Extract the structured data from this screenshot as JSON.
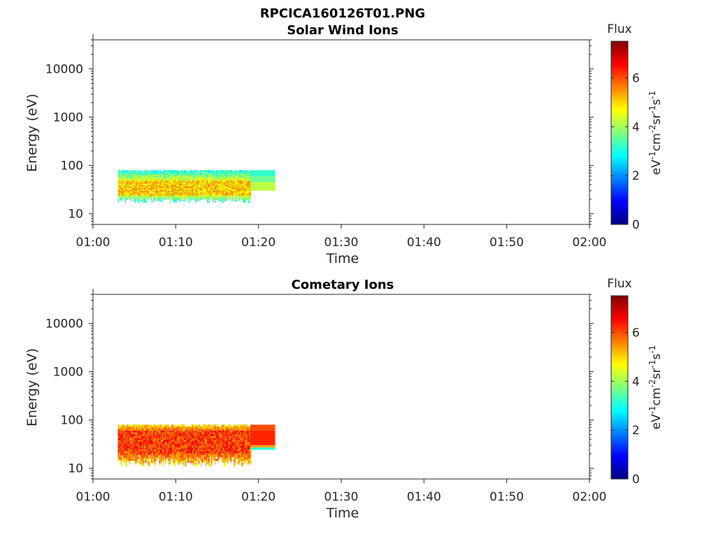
{
  "figure_title": "RPCICA160126T01.PNG",
  "colormap": [
    "#00007f",
    "#0000ff",
    "#007fff",
    "#00ffff",
    "#7fff7f",
    "#ffff00",
    "#ff7f00",
    "#ff0000",
    "#7f0000"
  ],
  "chart_data": [
    {
      "type": "heatmap",
      "title": "Solar Wind Ions",
      "xlabel": "Time",
      "ylabel": "Energy (eV)",
      "xlim": [
        "01:00",
        "02:00"
      ],
      "x_ticks": [
        "01:00",
        "01:10",
        "01:20",
        "01:30",
        "01:40",
        "01:50",
        "02:00"
      ],
      "ylim": [
        6,
        40000
      ],
      "yscale": "log",
      "y_ticks": [
        10,
        100,
        1000,
        10000
      ],
      "y_tick_labels": [
        "10",
        "100",
        "1000",
        "10000"
      ],
      "colorbar": {
        "title": "Flux",
        "label": "eV-1cm-2sr-1s-1",
        "label_base": "eV",
        "label_sup1": "-1",
        "label_mid1": "cm",
        "label_sup2": "-2",
        "label_mid2": "sr",
        "label_sup3": "-1",
        "label_mid3": "s",
        "label_sup4": "-1",
        "range": [
          0,
          7.5
        ],
        "ticks": [
          0,
          2,
          4,
          6
        ],
        "tick_labels": [
          "0",
          "2",
          "4",
          "6"
        ]
      },
      "data_regions": [
        {
          "t_start": "01:03",
          "t_end": "01:19",
          "e_min": 17,
          "e_max": 80,
          "e_core": [
            25,
            50
          ],
          "core_level": 5.8,
          "edge_level": 3.5
        },
        {
          "t_start": "01:19",
          "t_end": "01:22",
          "bands": [
            {
              "e_min": 60,
              "e_max": 80,
              "level": 3.2
            },
            {
              "e_min": 45,
              "e_max": 60,
              "level": 3.6
            },
            {
              "e_min": 30,
              "e_max": 45,
              "level": 4.2
            }
          ]
        }
      ]
    },
    {
      "type": "heatmap",
      "title": "Cometary Ions",
      "xlabel": "Time",
      "ylabel": "Energy (eV)",
      "xlim": [
        "01:00",
        "02:00"
      ],
      "x_ticks": [
        "01:00",
        "01:10",
        "01:20",
        "01:30",
        "01:40",
        "01:50",
        "02:00"
      ],
      "ylim": [
        6,
        40000
      ],
      "yscale": "log",
      "y_ticks": [
        10,
        100,
        1000,
        10000
      ],
      "y_tick_labels": [
        "10",
        "100",
        "1000",
        "10000"
      ],
      "colorbar": {
        "title": "Flux",
        "label": "eV-1cm-2sr-1s-1",
        "label_base": "eV",
        "label_sup1": "-1",
        "label_mid1": "cm",
        "label_sup2": "-2",
        "label_mid2": "sr",
        "label_sup3": "-1",
        "label_mid3": "s",
        "label_sup4": "-1",
        "range": [
          0,
          7.5
        ],
        "ticks": [
          0,
          2,
          4,
          6
        ],
        "tick_labels": [
          "0",
          "2",
          "4",
          "6"
        ]
      },
      "data_regions": [
        {
          "t_start": "01:03",
          "t_end": "01:19",
          "e_min": 11,
          "e_max": 80,
          "e_core": [
            20,
            60
          ],
          "core_level": 6.8,
          "edge_level": 5.5
        },
        {
          "t_start": "01:19",
          "t_end": "01:22",
          "bands": [
            {
              "e_min": 60,
              "e_max": 80,
              "level": 6.0
            },
            {
              "e_min": 30,
              "e_max": 60,
              "level": 6.3
            },
            {
              "e_min": 27,
              "e_max": 30,
              "level": 5.4
            },
            {
              "e_min": 24,
              "e_max": 27,
              "level": 3.2
            }
          ]
        }
      ]
    }
  ]
}
